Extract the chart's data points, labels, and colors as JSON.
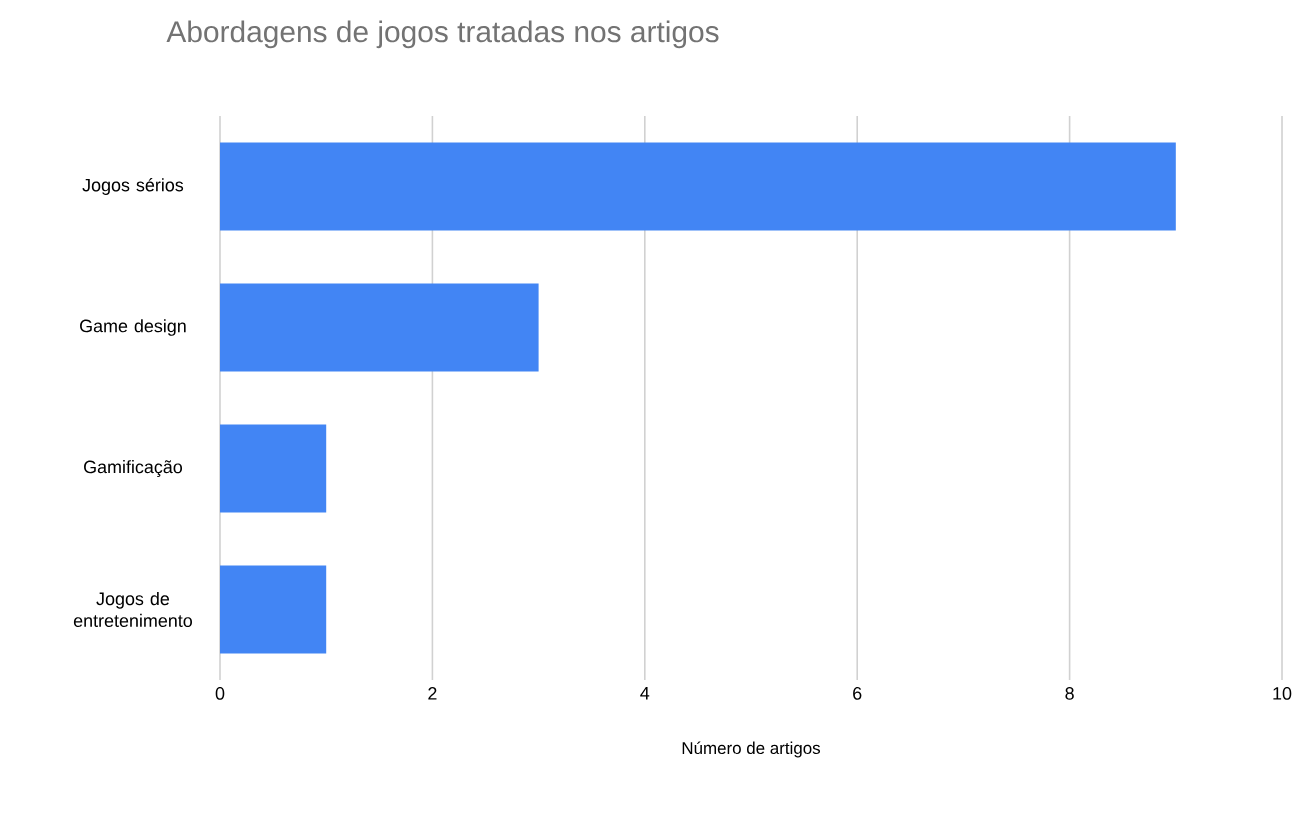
{
  "chart_data": {
    "type": "bar",
    "orientation": "horizontal",
    "title": "Abordagens de jogos tratadas nos artigos",
    "xlabel": "Número de artigos",
    "categories": [
      "Jogos sérios",
      "Game design",
      "Gamificação",
      "Jogos de entretenimento"
    ],
    "values": [
      9,
      3,
      1,
      1
    ],
    "color": "#4285f4",
    "xlim": [
      0,
      10
    ],
    "xticks": [
      0,
      2,
      4,
      6,
      8,
      10
    ],
    "grid": "x"
  }
}
